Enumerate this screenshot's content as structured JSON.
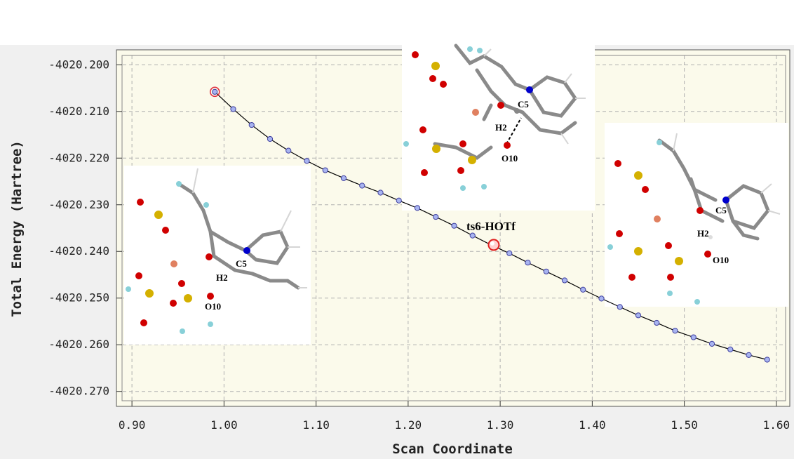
{
  "chart_data": {
    "type": "scatter",
    "xlabel": "Scan Coordinate",
    "ylabel": "Total Energy (Hartree)",
    "xlim": [
      0.89,
      1.61
    ],
    "ylim": [
      -4020.272,
      -4020.198
    ],
    "x_ticks": [
      0.9,
      1.0,
      1.1,
      1.2,
      1.3,
      1.4,
      1.5,
      1.6
    ],
    "x_tick_labels": [
      "0.90",
      "1.00",
      "1.10",
      "1.20",
      "1.30",
      "1.40",
      "1.50",
      "1.60"
    ],
    "y_ticks": [
      -4020.2,
      -4020.21,
      -4020.22,
      -4020.23,
      -4020.24,
      -4020.25,
      -4020.26,
      -4020.27
    ],
    "y_tick_labels": [
      "-4020.200",
      "-4020.210",
      "-4020.220",
      "-4020.230",
      "-4020.240",
      "-4020.250",
      "-4020.260",
      "-4020.270"
    ],
    "grid": true,
    "series": [
      {
        "x": [
          0.99,
          1.01,
          1.03,
          1.05,
          1.07,
          1.09,
          1.11,
          1.13,
          1.15,
          1.17,
          1.19,
          1.21,
          1.23,
          1.25,
          1.27,
          1.29,
          1.31,
          1.33,
          1.35,
          1.37,
          1.39,
          1.41,
          1.43,
          1.45,
          1.47,
          1.49,
          1.51,
          1.53,
          1.55,
          1.57,
          1.59
        ],
        "y": [
          -4020.2058,
          -4020.2095,
          -4020.2129,
          -4020.2159,
          -4020.2184,
          -4020.2206,
          -4020.2226,
          -4020.2243,
          -4020.2259,
          -4020.2274,
          -4020.2291,
          -4020.2307,
          -4020.2326,
          -4020.2345,
          -4020.2366,
          -4020.2386,
          -4020.2404,
          -4020.2424,
          -4020.2443,
          -4020.2462,
          -4020.2482,
          -4020.2501,
          -4020.2519,
          -4020.2537,
          -4020.2553,
          -4020.257,
          -4020.2584,
          -4020.2598,
          -4020.261,
          -4020.2622,
          -4020.2632
        ]
      }
    ],
    "highlighted_points": [
      {
        "x": 0.99,
        "y": -4020.2058
      },
      {
        "x": 1.293,
        "y": -4020.2386,
        "label": "ts6-HOTf"
      }
    ],
    "annotations": [
      "ts6-HOTf"
    ],
    "inset_labels": {
      "top": [
        "C5",
        "H2",
        "O10"
      ],
      "left": [
        "C5",
        "H2",
        "O10"
      ],
      "right": [
        "C5",
        "H2",
        "O10"
      ]
    }
  }
}
